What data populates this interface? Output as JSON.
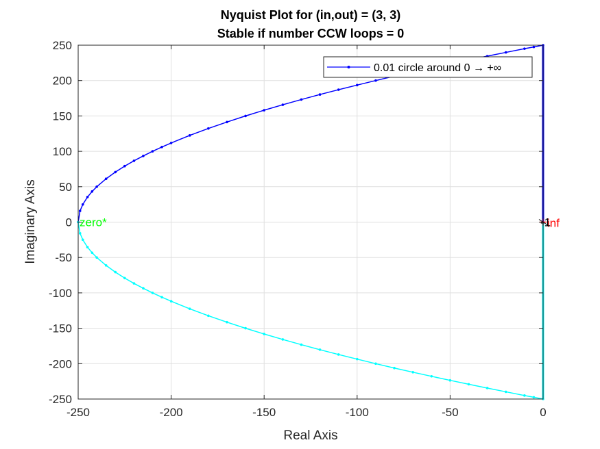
{
  "chart_data": {
    "type": "line",
    "title": "Nyquist Plot for (in,out) = (3, 3)",
    "subtitle": "Stable if number CCW loops = 0",
    "xlabel": "Real Axis",
    "ylabel": "Imaginary Axis",
    "xlim": [
      -250,
      0
    ],
    "ylim": [
      -250,
      250
    ],
    "xticks": [
      -250,
      -200,
      -150,
      -100,
      -50,
      0
    ],
    "yticks": [
      -250,
      -200,
      -150,
      -100,
      -50,
      0,
      50,
      100,
      150,
      200,
      250
    ],
    "xtick_labels": [
      "-250",
      "-200",
      "-150",
      "-100",
      "-50",
      "0"
    ],
    "ytick_labels": [
      "-250",
      "-200",
      "-150",
      "-100",
      "-50",
      "0",
      "50",
      "100",
      "150",
      "200",
      "250"
    ],
    "grid": true,
    "legend": {
      "placement": "top-right",
      "entries": [
        "0.01 circle around 0 → +∞"
      ]
    },
    "series": [
      {
        "name": "0.01 circle around 0 → +∞",
        "color": "#0000ff",
        "marker": "dot",
        "x": [
          -250,
          -249,
          -247.5,
          -245,
          -242.5,
          -240,
          -235,
          -230,
          -225,
          -220,
          -215,
          -210,
          -205,
          -200,
          -190,
          -180,
          -170,
          -160,
          -150,
          -140,
          -130,
          -120,
          -110,
          -100,
          -90,
          -80,
          -70,
          -60,
          -50,
          -40,
          -30,
          -20,
          -10,
          -5,
          0
        ],
        "y": [
          0,
          15.8,
          25,
          35.4,
          43.3,
          50,
          61.2,
          70.7,
          79.1,
          86.6,
          93.5,
          100,
          106.1,
          111.8,
          122.5,
          132.3,
          141.4,
          150,
          158.1,
          165.8,
          173.2,
          180.3,
          187.1,
          193.6,
          200,
          206.2,
          212.1,
          217.9,
          223.6,
          229.1,
          234.5,
          239.8,
          245,
          247.5,
          250
        ]
      },
      {
        "name": "",
        "color": "#0000ff",
        "marker": "none",
        "x": [
          0,
          0
        ],
        "y": [
          250,
          0
        ]
      },
      {
        "name": "",
        "color": "#00ffff",
        "marker": "dot",
        "x": [
          -250,
          -249,
          -247.5,
          -245,
          -242.5,
          -240,
          -235,
          -230,
          -225,
          -220,
          -215,
          -210,
          -205,
          -200,
          -190,
          -180,
          -170,
          -160,
          -150,
          -140,
          -130,
          -120,
          -110,
          -100,
          -90,
          -80,
          -70,
          -60,
          -50,
          -40,
          -30,
          -20,
          -10,
          -5,
          0
        ],
        "y": [
          0,
          -15.8,
          -25,
          -35.4,
          -43.3,
          -50,
          -61.2,
          -70.7,
          -79.1,
          -86.6,
          -93.5,
          -100,
          -106.1,
          -111.8,
          -122.5,
          -132.3,
          -141.4,
          -150,
          -158.1,
          -165.8,
          -173.2,
          -180.3,
          -187.1,
          -193.6,
          -200,
          -206.2,
          -212.1,
          -217.9,
          -223.6,
          -229.1,
          -234.5,
          -239.8,
          -245,
          -247.5,
          -250
        ]
      },
      {
        "name": "",
        "color": "#00ffff",
        "marker": "none",
        "x": [
          0,
          0
        ],
        "y": [
          -250,
          0
        ]
      }
    ],
    "annotations": [
      {
        "text": "zero*",
        "x": -250,
        "y": 0,
        "color": "#00ff00"
      },
      {
        "text": "inf",
        "x": 0,
        "y": 0,
        "color": "#ff0000"
      },
      {
        "text": "-1",
        "x": 0,
        "y": 0,
        "color": "#000000"
      }
    ],
    "markers": [
      {
        "label": "critical-point",
        "x": 0,
        "y": 0,
        "symbol": "plus",
        "color": "#ff0000"
      }
    ]
  }
}
